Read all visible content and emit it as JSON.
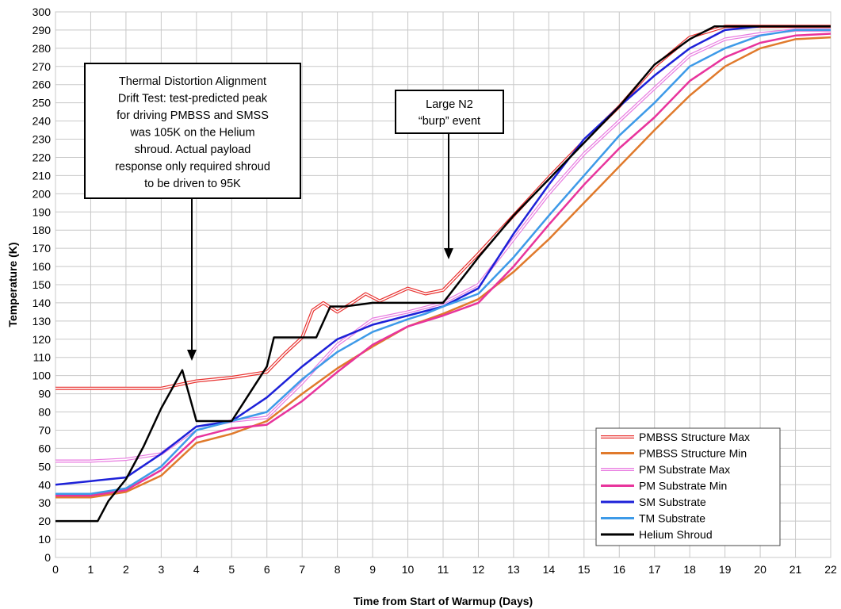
{
  "chart_data": {
    "type": "line",
    "xlabel": "Time from Start of Warmup (Days)",
    "ylabel": "Temperature (K)",
    "xlim": [
      0,
      22
    ],
    "ylim": [
      0,
      300
    ],
    "x_ticks": [
      0,
      1,
      2,
      3,
      4,
      5,
      6,
      7,
      8,
      9,
      10,
      11,
      12,
      13,
      14,
      15,
      16,
      17,
      18,
      19,
      20,
      21,
      22
    ],
    "y_ticks": [
      0,
      10,
      20,
      30,
      40,
      50,
      60,
      70,
      80,
      90,
      100,
      110,
      120,
      130,
      140,
      150,
      160,
      170,
      180,
      190,
      200,
      210,
      220,
      230,
      240,
      250,
      260,
      270,
      280,
      290,
      300
    ],
    "grid": true,
    "legend_position": "bottom-right",
    "series": [
      {
        "name": "PMBSS Structure Max",
        "color": "#e8312f",
        "style": "double-line",
        "x": [
          0,
          1,
          2,
          3,
          4,
          5,
          6,
          6.5,
          7,
          7.3,
          7.6,
          8,
          8.5,
          8.8,
          9.2,
          10,
          10.5,
          11,
          12,
          13,
          14,
          15,
          16,
          17,
          18,
          19,
          20,
          21,
          22
        ],
        "y": [
          93,
          93,
          93,
          93,
          97,
          99,
          102,
          112,
          121,
          136,
          140,
          135,
          141,
          145,
          141,
          148,
          145,
          147,
          167,
          188,
          209,
          229,
          248,
          270,
          286,
          292,
          292,
          292,
          292
        ]
      },
      {
        "name": "PMBSS Structure Min",
        "color": "#e07a2c",
        "style": "solid",
        "x": [
          0,
          1,
          2,
          3,
          4,
          5,
          6,
          7,
          8,
          9,
          10,
          11,
          12,
          13,
          14,
          15,
          16,
          17,
          18,
          19,
          20,
          21,
          22
        ],
        "y": [
          33,
          33,
          36,
          45,
          63,
          68,
          75,
          90,
          104,
          116,
          127,
          134,
          142,
          157,
          175,
          195,
          215,
          235,
          254,
          270,
          280,
          285,
          286
        ]
      },
      {
        "name": "PM Substrate Max",
        "color": "#e87be0",
        "style": "double-line",
        "x": [
          0,
          1,
          2,
          3,
          4,
          5,
          6,
          7,
          8,
          9,
          10,
          11,
          12,
          13,
          14,
          15,
          16,
          17,
          18,
          19,
          20,
          21,
          22
        ],
        "y": [
          53,
          53,
          54,
          57,
          71,
          75,
          77,
          96,
          117,
          131,
          135,
          140,
          150,
          175,
          200,
          222,
          240,
          258,
          276,
          285,
          288,
          290,
          290
        ]
      },
      {
        "name": "PM Substrate Min",
        "color": "#e8349c",
        "style": "solid",
        "x": [
          0,
          1,
          2,
          3,
          4,
          5,
          6,
          7,
          8,
          9,
          10,
          11,
          12,
          13,
          14,
          15,
          16,
          17,
          18,
          19,
          20,
          21,
          22
        ],
        "y": [
          34,
          34,
          37,
          48,
          66,
          71,
          73,
          86,
          102,
          117,
          127,
          133,
          140,
          160,
          183,
          205,
          225,
          242,
          262,
          275,
          283,
          287,
          288
        ]
      },
      {
        "name": "SM Substrate",
        "color": "#1d21d8",
        "style": "solid",
        "x": [
          0,
          1,
          2,
          3,
          4,
          5,
          6,
          7,
          8,
          9,
          10,
          11,
          12,
          13,
          14,
          15,
          16,
          17,
          18,
          19,
          20,
          21,
          22
        ],
        "y": [
          40,
          42,
          44,
          57,
          72,
          75,
          88,
          105,
          120,
          128,
          133,
          138,
          148,
          178,
          205,
          230,
          248,
          265,
          280,
          290,
          292,
          292,
          292
        ]
      },
      {
        "name": "TM Substrate",
        "color": "#3d9ae8",
        "style": "solid",
        "x": [
          0,
          1,
          2,
          3,
          4,
          5,
          6,
          7,
          8,
          9,
          10,
          10.5,
          11,
          12,
          13,
          14,
          15,
          16,
          17,
          18,
          19,
          20,
          21,
          22
        ],
        "y": [
          35,
          35,
          38,
          50,
          70,
          75,
          80,
          98,
          113,
          124,
          131,
          134,
          138,
          145,
          165,
          188,
          210,
          232,
          250,
          270,
          280,
          287,
          290,
          290
        ]
      },
      {
        "name": "Helium Shroud",
        "color": "#000000",
        "style": "solid",
        "x": [
          0,
          0.5,
          1,
          1.2,
          1.5,
          2,
          2.5,
          3,
          3.6,
          4,
          4.5,
          5,
          5.5,
          6,
          6.2,
          6.6,
          7,
          7.4,
          7.8,
          8.2,
          8.6,
          9,
          10,
          11,
          12,
          13,
          14,
          15,
          16,
          17,
          18,
          18.7,
          19,
          20,
          21,
          22
        ],
        "y": [
          20,
          20,
          20,
          20,
          31,
          43,
          61,
          82,
          103,
          75,
          75,
          75,
          90,
          105,
          121,
          121,
          121,
          121,
          138,
          138,
          139,
          140,
          140,
          140,
          165,
          188,
          208,
          228,
          248,
          271,
          285,
          292,
          292,
          292,
          292,
          292
        ]
      }
    ]
  },
  "annotations": {
    "callout_1": {
      "lines": [
        "Thermal Distortion Alignment",
        "Drift Test: test-predicted peak",
        "for driving PMBSS and SMSS",
        "was 105K on the Helium",
        "shroud. Actual payload",
        "response only required shroud",
        "to be driven to 95K"
      ]
    },
    "callout_2": {
      "lines": [
        "Large N2",
        "“burp” event"
      ]
    }
  }
}
